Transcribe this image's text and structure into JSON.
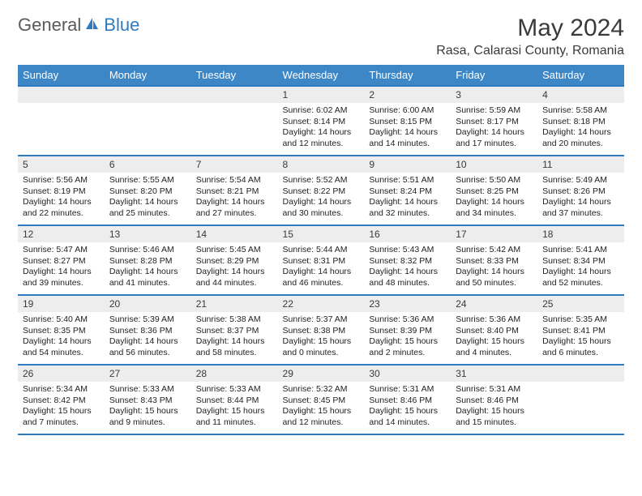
{
  "logo": {
    "part1": "General",
    "part2": "Blue"
  },
  "title": "May 2024",
  "location": "Rasa, Calarasi County, Romania",
  "day_headers": [
    "Sunday",
    "Monday",
    "Tuesday",
    "Wednesday",
    "Thursday",
    "Friday",
    "Saturday"
  ],
  "colors": {
    "header_bg": "#3d87c7",
    "row_border": "#2f7bbf",
    "daynum_bg": "#ededed",
    "logo_gray": "#5a5a5a",
    "logo_blue": "#2f7bbf"
  },
  "weeks": [
    [
      {
        "n": "",
        "sr": "",
        "ss": "",
        "dl": ""
      },
      {
        "n": "",
        "sr": "",
        "ss": "",
        "dl": ""
      },
      {
        "n": "",
        "sr": "",
        "ss": "",
        "dl": ""
      },
      {
        "n": "1",
        "sr": "6:02 AM",
        "ss": "8:14 PM",
        "dl": "14 hours and 12 minutes."
      },
      {
        "n": "2",
        "sr": "6:00 AM",
        "ss": "8:15 PM",
        "dl": "14 hours and 14 minutes."
      },
      {
        "n": "3",
        "sr": "5:59 AM",
        "ss": "8:17 PM",
        "dl": "14 hours and 17 minutes."
      },
      {
        "n": "4",
        "sr": "5:58 AM",
        "ss": "8:18 PM",
        "dl": "14 hours and 20 minutes."
      }
    ],
    [
      {
        "n": "5",
        "sr": "5:56 AM",
        "ss": "8:19 PM",
        "dl": "14 hours and 22 minutes."
      },
      {
        "n": "6",
        "sr": "5:55 AM",
        "ss": "8:20 PM",
        "dl": "14 hours and 25 minutes."
      },
      {
        "n": "7",
        "sr": "5:54 AM",
        "ss": "8:21 PM",
        "dl": "14 hours and 27 minutes."
      },
      {
        "n": "8",
        "sr": "5:52 AM",
        "ss": "8:22 PM",
        "dl": "14 hours and 30 minutes."
      },
      {
        "n": "9",
        "sr": "5:51 AM",
        "ss": "8:24 PM",
        "dl": "14 hours and 32 minutes."
      },
      {
        "n": "10",
        "sr": "5:50 AM",
        "ss": "8:25 PM",
        "dl": "14 hours and 34 minutes."
      },
      {
        "n": "11",
        "sr": "5:49 AM",
        "ss": "8:26 PM",
        "dl": "14 hours and 37 minutes."
      }
    ],
    [
      {
        "n": "12",
        "sr": "5:47 AM",
        "ss": "8:27 PM",
        "dl": "14 hours and 39 minutes."
      },
      {
        "n": "13",
        "sr": "5:46 AM",
        "ss": "8:28 PM",
        "dl": "14 hours and 41 minutes."
      },
      {
        "n": "14",
        "sr": "5:45 AM",
        "ss": "8:29 PM",
        "dl": "14 hours and 44 minutes."
      },
      {
        "n": "15",
        "sr": "5:44 AM",
        "ss": "8:31 PM",
        "dl": "14 hours and 46 minutes."
      },
      {
        "n": "16",
        "sr": "5:43 AM",
        "ss": "8:32 PM",
        "dl": "14 hours and 48 minutes."
      },
      {
        "n": "17",
        "sr": "5:42 AM",
        "ss": "8:33 PM",
        "dl": "14 hours and 50 minutes."
      },
      {
        "n": "18",
        "sr": "5:41 AM",
        "ss": "8:34 PM",
        "dl": "14 hours and 52 minutes."
      }
    ],
    [
      {
        "n": "19",
        "sr": "5:40 AM",
        "ss": "8:35 PM",
        "dl": "14 hours and 54 minutes."
      },
      {
        "n": "20",
        "sr": "5:39 AM",
        "ss": "8:36 PM",
        "dl": "14 hours and 56 minutes."
      },
      {
        "n": "21",
        "sr": "5:38 AM",
        "ss": "8:37 PM",
        "dl": "14 hours and 58 minutes."
      },
      {
        "n": "22",
        "sr": "5:37 AM",
        "ss": "8:38 PM",
        "dl": "15 hours and 0 minutes."
      },
      {
        "n": "23",
        "sr": "5:36 AM",
        "ss": "8:39 PM",
        "dl": "15 hours and 2 minutes."
      },
      {
        "n": "24",
        "sr": "5:36 AM",
        "ss": "8:40 PM",
        "dl": "15 hours and 4 minutes."
      },
      {
        "n": "25",
        "sr": "5:35 AM",
        "ss": "8:41 PM",
        "dl": "15 hours and 6 minutes."
      }
    ],
    [
      {
        "n": "26",
        "sr": "5:34 AM",
        "ss": "8:42 PM",
        "dl": "15 hours and 7 minutes."
      },
      {
        "n": "27",
        "sr": "5:33 AM",
        "ss": "8:43 PM",
        "dl": "15 hours and 9 minutes."
      },
      {
        "n": "28",
        "sr": "5:33 AM",
        "ss": "8:44 PM",
        "dl": "15 hours and 11 minutes."
      },
      {
        "n": "29",
        "sr": "5:32 AM",
        "ss": "8:45 PM",
        "dl": "15 hours and 12 minutes."
      },
      {
        "n": "30",
        "sr": "5:31 AM",
        "ss": "8:46 PM",
        "dl": "15 hours and 14 minutes."
      },
      {
        "n": "31",
        "sr": "5:31 AM",
        "ss": "8:46 PM",
        "dl": "15 hours and 15 minutes."
      },
      {
        "n": "",
        "sr": "",
        "ss": "",
        "dl": ""
      }
    ]
  ],
  "labels": {
    "sunrise": "Sunrise:",
    "sunset": "Sunset:",
    "daylight": "Daylight:"
  }
}
